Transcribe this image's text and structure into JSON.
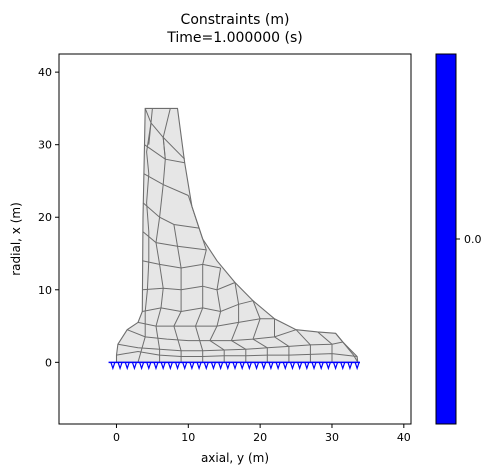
{
  "chart_data": {
    "type": "mesh",
    "title_line1": "Constraints  (m)",
    "title_line2": "Time=1.000000 (s)",
    "xlabel": "axial, y (m)",
    "ylabel": "radial, x (m)",
    "xlim": [
      -8,
      41
    ],
    "ylim": [
      -8.5,
      42.5
    ],
    "xticks": [
      0,
      10,
      20,
      30,
      40
    ],
    "yticks": [
      0,
      10,
      20,
      30,
      40
    ],
    "grid": false,
    "mesh_fill": "#e6e6e6",
    "mesh_edge": "#6e6e6e",
    "constraint_color": "#0000ff",
    "domain_outline": [
      [
        4,
        35
      ],
      [
        8.5,
        35
      ],
      [
        9.5,
        27.5
      ],
      [
        10.5,
        21.5
      ],
      [
        12,
        17
      ],
      [
        14,
        14
      ],
      [
        16.5,
        11
      ],
      [
        19,
        8.5
      ],
      [
        22,
        6
      ],
      [
        25,
        4.5
      ],
      [
        28,
        4.2
      ],
      [
        30.5,
        4
      ],
      [
        31.5,
        2.8
      ],
      [
        32.5,
        1.8
      ],
      [
        33.5,
        0.8
      ],
      [
        33.6,
        0
      ],
      [
        0,
        0
      ],
      [
        0,
        1
      ],
      [
        0.2,
        2.5
      ],
      [
        1.5,
        4.5
      ],
      [
        3,
        5.5
      ],
      [
        3.6,
        7
      ],
      [
        3.7,
        20
      ],
      [
        3.9,
        30
      ]
    ],
    "mesh_lines": [
      [
        [
          4,
          35
        ],
        [
          4.8,
          33
        ],
        [
          6.5,
          31
        ],
        [
          9.5,
          28
        ]
      ],
      [
        [
          5,
          35
        ],
        [
          4.8,
          33
        ],
        [
          4.5,
          30
        ]
      ],
      [
        [
          7.5,
          35
        ],
        [
          6.5,
          31
        ],
        [
          6.8,
          28
        ]
      ],
      [
        [
          3.9,
          30
        ],
        [
          6.8,
          28
        ],
        [
          9.5,
          27.5
        ]
      ],
      [
        [
          3.8,
          26
        ],
        [
          6.5,
          24.5
        ],
        [
          10,
          23
        ]
      ],
      [
        [
          3.7,
          22
        ],
        [
          6,
          20
        ],
        [
          8,
          19
        ],
        [
          11.5,
          18.5
        ]
      ],
      [
        [
          3.7,
          18
        ],
        [
          5.5,
          16.5
        ],
        [
          8.5,
          16
        ],
        [
          12.5,
          15.5
        ]
      ],
      [
        [
          3.6,
          14
        ],
        [
          6,
          13.5
        ],
        [
          9,
          13
        ],
        [
          12,
          13.5
        ],
        [
          14.5,
          13
        ]
      ],
      [
        [
          3.6,
          10
        ],
        [
          6.5,
          10.2
        ],
        [
          9,
          10
        ],
        [
          12,
          10.5
        ],
        [
          14,
          10
        ],
        [
          16.5,
          11
        ]
      ],
      [
        [
          3.6,
          7
        ],
        [
          6.2,
          7.5
        ],
        [
          9,
          7
        ],
        [
          12,
          7.5
        ],
        [
          14.5,
          7
        ],
        [
          17,
          8
        ],
        [
          19,
          8.5
        ]
      ],
      [
        [
          3,
          5.5
        ],
        [
          5.5,
          5
        ],
        [
          8,
          5
        ],
        [
          11,
          5
        ],
        [
          14,
          5
        ],
        [
          17,
          5.5
        ],
        [
          20,
          6
        ],
        [
          22,
          6
        ]
      ],
      [
        [
          1.5,
          4.5
        ],
        [
          4,
          3.5
        ],
        [
          7,
          3.2
        ],
        [
          10,
          3
        ],
        [
          13,
          3
        ],
        [
          16,
          3
        ],
        [
          19,
          3.2
        ],
        [
          22,
          3.5
        ],
        [
          25,
          4.5
        ]
      ],
      [
        [
          0.2,
          2.5
        ],
        [
          3,
          2
        ],
        [
          6,
          1.8
        ],
        [
          9,
          1.6
        ],
        [
          12,
          1.6
        ],
        [
          15,
          1.7
        ],
        [
          18,
          1.8
        ],
        [
          21,
          2
        ],
        [
          24,
          2.2
        ],
        [
          27,
          2.4
        ],
        [
          30,
          2.5
        ],
        [
          31.5,
          2.8
        ]
      ],
      [
        [
          4.8,
          33
        ],
        [
          4.2,
          29
        ],
        [
          4.5,
          26
        ],
        [
          4.2,
          22
        ],
        [
          4.5,
          18
        ],
        [
          4.5,
          14
        ],
        [
          4.3,
          10
        ],
        [
          4,
          7
        ],
        [
          4,
          3.5
        ],
        [
          3,
          0
        ]
      ],
      [
        [
          6.5,
          31
        ],
        [
          6.8,
          28
        ],
        [
          6.5,
          24.5
        ],
        [
          6,
          20
        ],
        [
          5.5,
          16.5
        ],
        [
          6,
          13.5
        ],
        [
          6.5,
          10.2
        ],
        [
          6.2,
          7.5
        ],
        [
          5.5,
          5
        ],
        [
          6,
          1.8
        ],
        [
          6,
          0
        ]
      ],
      [
        [
          8,
          19
        ],
        [
          8.5,
          16
        ],
        [
          9,
          13
        ],
        [
          9,
          10
        ],
        [
          9,
          7
        ],
        [
          8,
          5
        ],
        [
          9,
          1.6
        ],
        [
          9,
          0
        ]
      ],
      [
        [
          10,
          23
        ],
        [
          11.5,
          18.5
        ],
        [
          12.5,
          15.5
        ],
        [
          12,
          13.5
        ],
        [
          12,
          10.5
        ],
        [
          12,
          7.5
        ],
        [
          11,
          5
        ],
        [
          12,
          1.6
        ],
        [
          12,
          0
        ]
      ],
      [
        [
          14.5,
          13
        ],
        [
          14,
          10
        ],
        [
          14.5,
          7
        ],
        [
          14,
          5
        ],
        [
          13,
          3
        ],
        [
          15,
          1.7
        ],
        [
          15,
          0
        ]
      ],
      [
        [
          16.5,
          11
        ],
        [
          17,
          8
        ],
        [
          17,
          5.5
        ],
        [
          16,
          3
        ],
        [
          18,
          1.8
        ],
        [
          18,
          0
        ]
      ],
      [
        [
          19,
          8.5
        ],
        [
          20,
          6
        ],
        [
          19,
          3.2
        ],
        [
          21,
          2
        ],
        [
          21,
          0
        ]
      ],
      [
        [
          22,
          6
        ],
        [
          22,
          3.5
        ],
        [
          24,
          2.2
        ],
        [
          24,
          0
        ]
      ],
      [
        [
          25,
          4.5
        ],
        [
          27,
          2.4
        ],
        [
          27,
          0
        ]
      ],
      [
        [
          28,
          4.2
        ],
        [
          30,
          2.5
        ],
        [
          30,
          0
        ]
      ],
      [
        [
          30.5,
          4
        ],
        [
          31.5,
          2.8
        ],
        [
          33,
          1
        ],
        [
          33.6,
          0
        ]
      ],
      [
        [
          0,
          1
        ],
        [
          3,
          1.5
        ],
        [
          6,
          1
        ],
        [
          9,
          0.8
        ],
        [
          12,
          0.8
        ],
        [
          15,
          0.9
        ],
        [
          18,
          0.9
        ],
        [
          21,
          1
        ],
        [
          24,
          1
        ],
        [
          27,
          1.1
        ],
        [
          30,
          1.2
        ],
        [
          33.5,
          0.8
        ]
      ]
    ],
    "constraint_y": [
      -0.5,
      0.5,
      1.5,
      2.5,
      3.5,
      4.5,
      5.5,
      6.5,
      7.5,
      8.5,
      9.5,
      10.5,
      11.5,
      12.5,
      13.5,
      14.5,
      15.5,
      16.5,
      17.5,
      18.5,
      19.5,
      20.5,
      21.5,
      22.5,
      23.5,
      24.5,
      25.5,
      26.5,
      27.5,
      28.5,
      29.5,
      30.5,
      31.5,
      32.5,
      33.5
    ],
    "colorbar": {
      "color": "#0000ff",
      "tick_label": "0.0"
    }
  }
}
